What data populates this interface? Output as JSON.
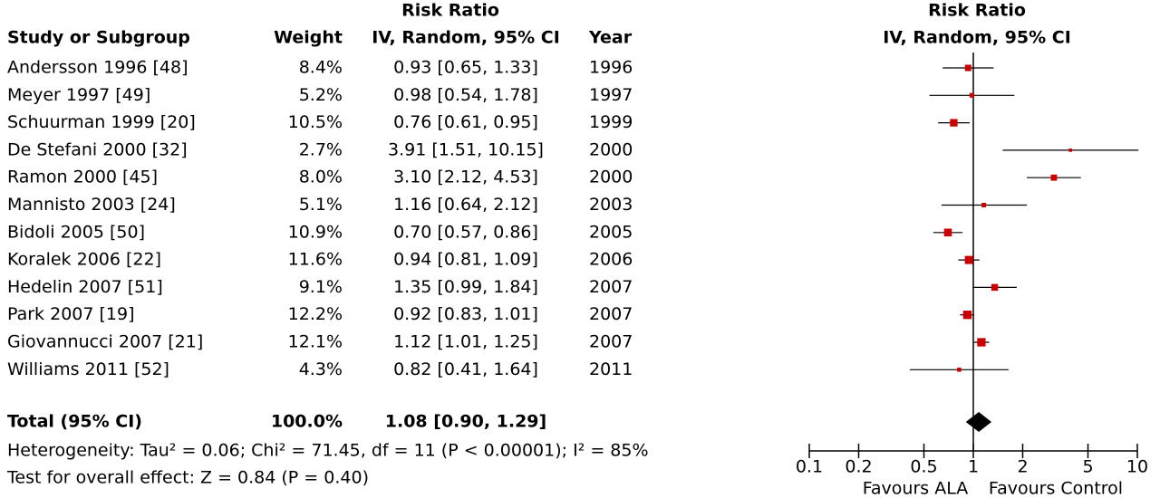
{
  "chart_data": {
    "type": "forest",
    "title": "Risk Ratio",
    "subtitle": "IV, Random, 95% CI",
    "headers": {
      "study": "Study or Subgroup",
      "weight": "Weight",
      "ci_title": "Risk Ratio",
      "ci_subtitle": "IV, Random, 95% CI",
      "year": "Year"
    },
    "categories": [
      "Andersson 1996 [48]",
      "Meyer 1997 [49]",
      "Schuurman 1999 [20]",
      "De Stefani 2000 [32]",
      "Ramon 2000 [45]",
      "Mannisto 2003 [24]",
      "Bidoli 2005 [50]",
      "Koralek 2006 [22]",
      "Hedelin 2007 [51]",
      "Park 2007 [19]",
      "Giovannucci 2007 [21]",
      "Williams 2011 [52]"
    ],
    "weights": {
      "values": [
        8.4,
        5.2,
        10.5,
        2.7,
        8.0,
        5.1,
        10.9,
        11.6,
        9.1,
        12.2,
        12.1,
        4.3
      ],
      "value_labels": [
        "8.4%",
        "5.2%",
        "10.5%",
        "2.7%",
        "8.0%",
        "5.1%",
        "10.9%",
        "11.6%",
        "9.1%",
        "12.2%",
        "12.1%",
        "4.3%"
      ]
    },
    "estimates": {
      "values": [
        0.93,
        0.98,
        0.76,
        3.91,
        3.1,
        1.16,
        0.7,
        0.94,
        1.35,
        0.92,
        1.12,
        0.82
      ],
      "lower": [
        0.65,
        0.54,
        0.61,
        1.51,
        2.12,
        0.64,
        0.57,
        0.81,
        0.99,
        0.83,
        1.01,
        0.41
      ],
      "upper": [
        1.33,
        1.78,
        0.95,
        10.15,
        4.53,
        2.12,
        0.86,
        1.09,
        1.84,
        1.01,
        1.25,
        1.64
      ],
      "value_labels": [
        "0.93 [0.65, 1.33]",
        "0.98 [0.54, 1.78]",
        "0.76 [0.61, 0.95]",
        "3.91 [1.51, 10.15]",
        "3.10 [2.12, 4.53]",
        "1.16 [0.64, 2.12]",
        "0.70 [0.57, 0.86]",
        "0.94 [0.81, 1.09]",
        "1.35 [0.99, 1.84]",
        "0.92 [0.83, 1.01]",
        "1.12 [1.01, 1.25]",
        "0.82 [0.41, 1.64]"
      ]
    },
    "years": [
      1996,
      1997,
      1999,
      2000,
      2000,
      2003,
      2005,
      2006,
      2007,
      2007,
      2007,
      2011
    ],
    "total": {
      "name": "Total (95% CI)",
      "weight": 100.0,
      "weight_label": "100.0%",
      "value": 1.08,
      "lower": 0.9,
      "upper": 1.29,
      "value_label": "1.08 [0.90, 1.29]"
    },
    "heterogeneity": "Heterogeneity: Tau² = 0.06; Chi² = 71.45, df = 11 (P < 0.00001); I² = 85%",
    "overall_effect": "Test for overall effect: Z = 0.84 (P = 0.40)",
    "xlim": [
      0.1,
      10
    ],
    "xticks": [
      0.1,
      0.2,
      0.5,
      1,
      2,
      5,
      10
    ],
    "log_x": true,
    "x_labels": [
      "Favours ALA",
      "Favours Control"
    ],
    "color": "#cc0000",
    "line_color": "#000000"
  }
}
